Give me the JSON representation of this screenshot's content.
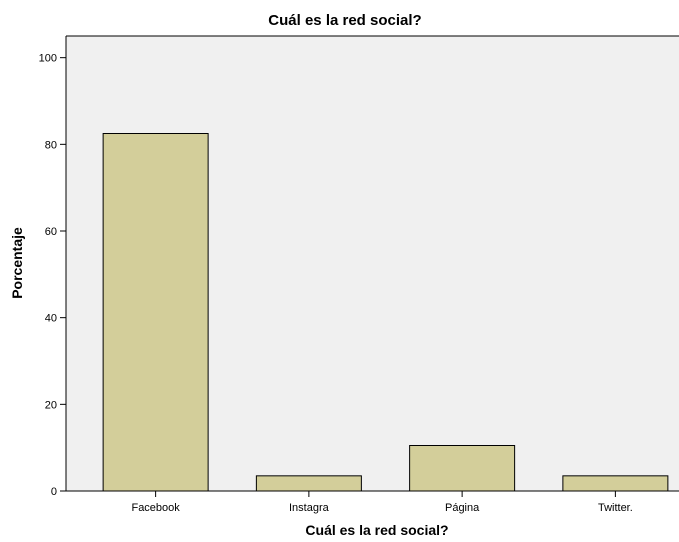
{
  "chart_data": {
    "type": "bar",
    "title": "Cuál es la red social?",
    "xlabel": "Cuál es la red social?",
    "ylabel": "Porcentaje",
    "categories": [
      "Facebook",
      "Instagra",
      "Página",
      "Twitter."
    ],
    "values": [
      82.5,
      3.5,
      10.5,
      3.5
    ],
    "ylim": [
      0,
      105
    ],
    "yticks": [
      0,
      20,
      40,
      60,
      80,
      100
    ],
    "grid": false,
    "legend": "none",
    "colors": {
      "bar_fill": "#d3ce9a",
      "bar_stroke": "#000000",
      "plot_background": "#f0f0f0"
    }
  }
}
